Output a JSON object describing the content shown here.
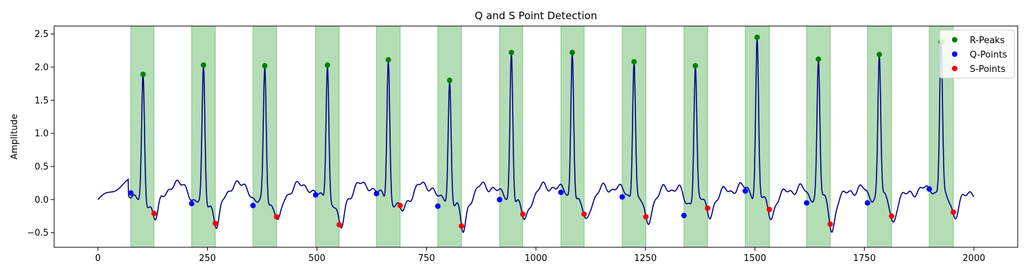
{
  "chart_data": {
    "type": "line",
    "title": "Q and S Point Detection",
    "xlabel": "",
    "ylabel": "Amplitude",
    "xlim": [
      -100,
      2100
    ],
    "ylim": [
      -0.72,
      2.62
    ],
    "x_ticks": [
      0,
      250,
      500,
      750,
      1000,
      1250,
      1500,
      1750,
      2000
    ],
    "y_ticks": [
      -0.5,
      0.0,
      0.5,
      1.0,
      1.5,
      2.0,
      2.5
    ],
    "x_tick_labels": [
      "0",
      "250",
      "500",
      "750",
      "1000",
      "1250",
      "1500",
      "1750",
      "2000"
    ],
    "y_tick_labels": [
      "−0.5",
      "0.0",
      "0.5",
      "1.0",
      "1.5",
      "2.0",
      "2.5"
    ],
    "legend_position": "top-right",
    "grid": false,
    "colors": {
      "signal": "#00008b",
      "r_peaks": "#008000",
      "q_points": "#0000ff",
      "s_points": "#ff0000",
      "span": "#4caf50"
    },
    "series": [
      {
        "name": "R-Peaks",
        "points": [
          [
            103,
            1.89
          ],
          [
            241,
            2.03
          ],
          [
            381,
            2.02
          ],
          [
            524,
            2.03
          ],
          [
            663,
            2.11
          ],
          [
            803,
            1.8
          ],
          [
            944,
            2.22
          ],
          [
            1083,
            2.22
          ],
          [
            1224,
            2.08
          ],
          [
            1364,
            2.02
          ],
          [
            1505,
            2.45
          ],
          [
            1645,
            2.12
          ],
          [
            1784,
            2.19
          ],
          [
            1925,
            2.38
          ]
        ]
      },
      {
        "name": "Q-Points",
        "points": [
          [
            75,
            0.1
          ],
          [
            214,
            -0.06
          ],
          [
            354,
            -0.09
          ],
          [
            497,
            0.07
          ],
          [
            636,
            0.09
          ],
          [
            776,
            -0.1
          ],
          [
            917,
            0.0
          ],
          [
            1057,
            0.11
          ],
          [
            1197,
            0.04
          ],
          [
            1338,
            -0.24
          ],
          [
            1478,
            0.13
          ],
          [
            1618,
            -0.05
          ],
          [
            1757,
            -0.05
          ],
          [
            1898,
            0.16
          ]
        ]
      },
      {
        "name": "S-Points",
        "points": [
          [
            128,
            -0.21
          ],
          [
            268,
            -0.36
          ],
          [
            408,
            -0.26
          ],
          [
            551,
            -0.38
          ],
          [
            690,
            -0.09
          ],
          [
            830,
            -0.4
          ],
          [
            970,
            -0.22
          ],
          [
            1110,
            -0.22
          ],
          [
            1251,
            -0.26
          ],
          [
            1392,
            -0.13
          ],
          [
            1533,
            -0.15
          ],
          [
            1672,
            -0.37
          ],
          [
            1812,
            -0.25
          ],
          [
            1953,
            -0.19
          ]
        ]
      }
    ]
  }
}
